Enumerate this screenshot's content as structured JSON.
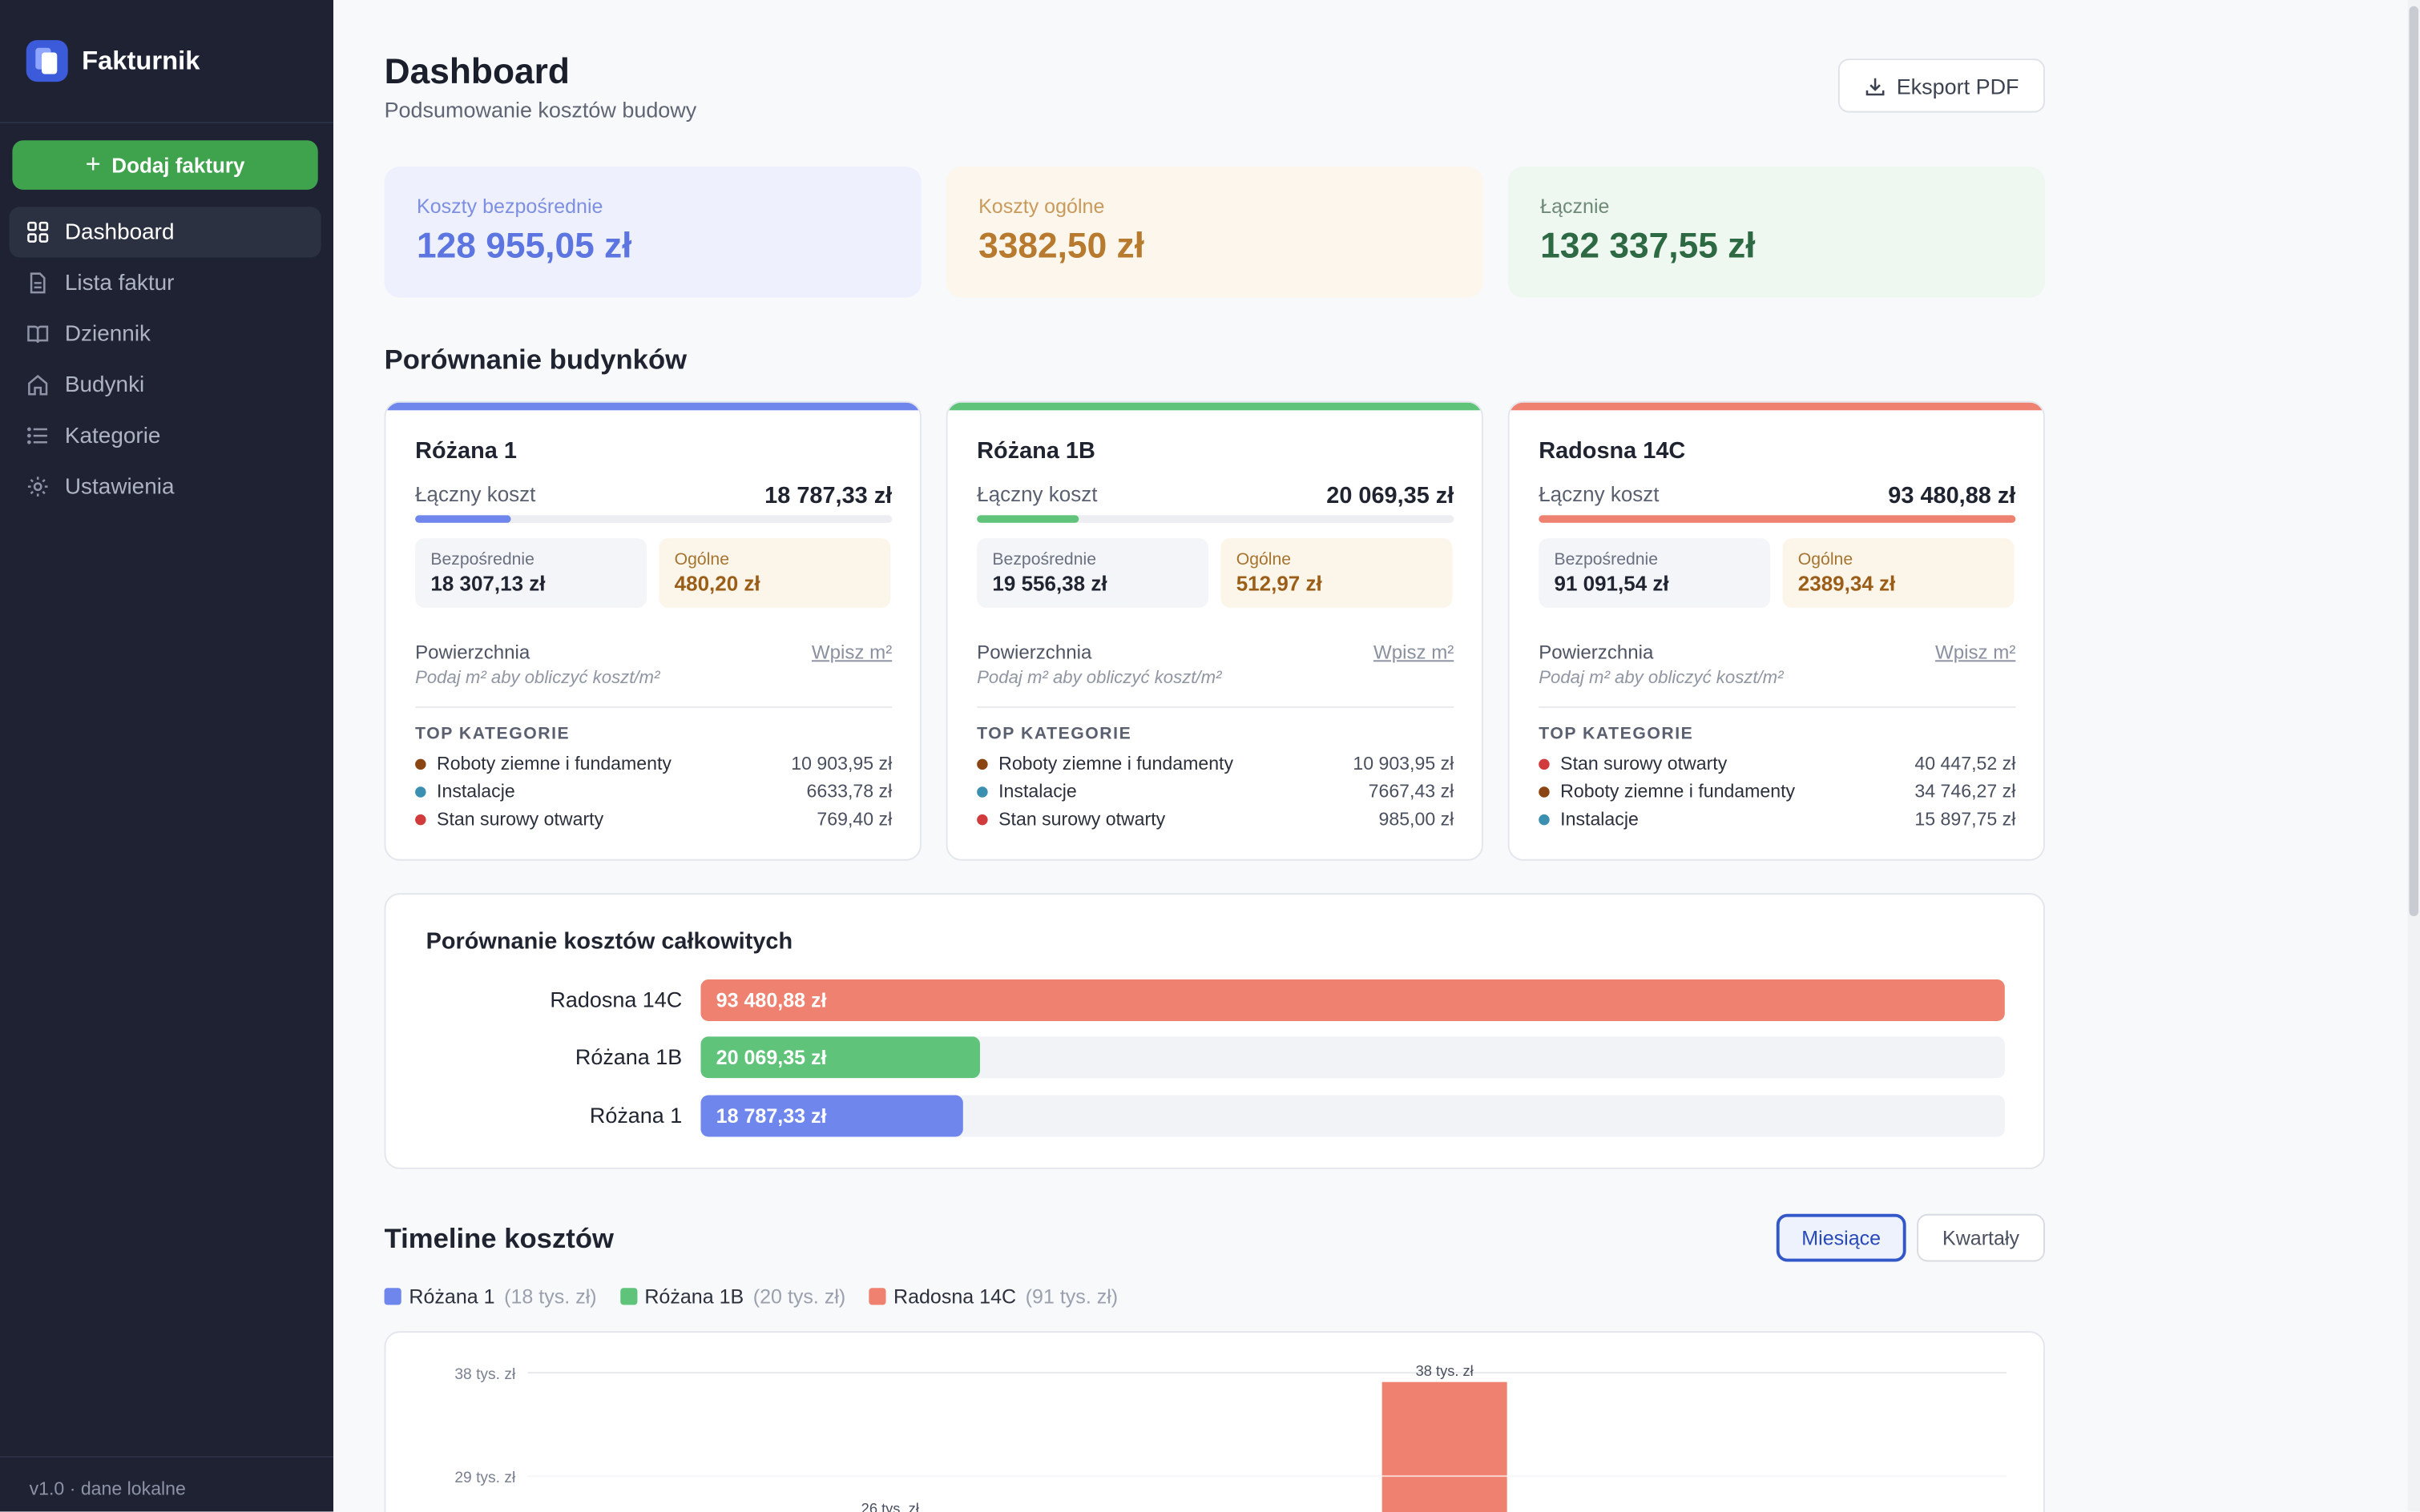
{
  "app": {
    "name": "Fakturnik",
    "version": "v1.0 · dane lokalne"
  },
  "sidebar": {
    "add_button": "Dodaj faktury",
    "items": [
      {
        "label": "Dashboard",
        "icon": "grid-icon",
        "active": true
      },
      {
        "label": "Lista faktur",
        "icon": "document-icon",
        "active": false
      },
      {
        "label": "Dziennik",
        "icon": "book-icon",
        "active": false
      },
      {
        "label": "Budynki",
        "icon": "home-icon",
        "active": false
      },
      {
        "label": "Kategorie",
        "icon": "list-icon",
        "active": false
      },
      {
        "label": "Ustawienia",
        "icon": "gear-icon",
        "active": false
      }
    ]
  },
  "header": {
    "title": "Dashboard",
    "subtitle": "Podsumowanie kosztów budowy",
    "export_label": "Eksport PDF"
  },
  "summary": [
    {
      "label": "Koszty bezpośrednie",
      "value": "128 955,05 zł"
    },
    {
      "label": "Koszty ogólne",
      "value": "3382,50 zł"
    },
    {
      "label": "Łącznie",
      "value": "132 337,55 zł"
    }
  ],
  "buildings_section": {
    "title": "Porównanie budynków",
    "total_label": "Łączny koszt",
    "direct_label": "Bezpośrednie",
    "general_label": "Ogólne",
    "area_label": "Powierzchnia",
    "area_link": "Wpisz m²",
    "area_hint": "Podaj m² aby obliczyć koszt/m²",
    "top_label": "TOP KATEGORIE",
    "buildings": [
      {
        "name": "Różana 1",
        "color": "#6f86ec",
        "total": "18 787,33 zł",
        "share": 0.2,
        "direct": "18 307,13 zł",
        "general": "480,20 zł",
        "categories": [
          {
            "name": "Roboty ziemne i fundamenty",
            "value": "10 903,95 zł",
            "color": "#8b4513"
          },
          {
            "name": "Instalacje",
            "value": "6633,78 zł",
            "color": "#3b8fb0"
          },
          {
            "name": "Stan surowy otwarty",
            "value": "769,40 zł",
            "color": "#d13b3b"
          }
        ]
      },
      {
        "name": "Różana 1B",
        "color": "#5fc47a",
        "total": "20 069,35 zł",
        "share": 0.215,
        "direct": "19 556,38 zł",
        "general": "512,97 zł",
        "categories": [
          {
            "name": "Roboty ziemne i fundamenty",
            "value": "10 903,95 zł",
            "color": "#8b4513"
          },
          {
            "name": "Instalacje",
            "value": "7667,43 zł",
            "color": "#3b8fb0"
          },
          {
            "name": "Stan surowy otwarty",
            "value": "985,00 zł",
            "color": "#d13b3b"
          }
        ]
      },
      {
        "name": "Radosna 14C",
        "color": "#ef8170",
        "total": "93 480,88 zł",
        "share": 1.0,
        "direct": "91 091,54 zł",
        "general": "2389,34 zł",
        "categories": [
          {
            "name": "Stan surowy otwarty",
            "value": "40 447,52 zł",
            "color": "#d13b3b"
          },
          {
            "name": "Roboty ziemne i fundamenty",
            "value": "34 746,27 zł",
            "color": "#8b4513"
          },
          {
            "name": "Instalacje",
            "value": "15 897,75 zł",
            "color": "#3b8fb0"
          }
        ]
      }
    ]
  },
  "comparison": {
    "title": "Porównanie kosztów całkowitych",
    "rows": [
      {
        "label": "Radosna 14C",
        "value_text": "93 480,88 zł",
        "value": 93480.88,
        "color": "#ef8170"
      },
      {
        "label": "Różana 1B",
        "value_text": "20 069,35 zł",
        "value": 20069.35,
        "color": "#5fc47a"
      },
      {
        "label": "Różana 1",
        "value_text": "18 787,33 zł",
        "value": 18787.33,
        "color": "#6f86ec"
      }
    ]
  },
  "timeline": {
    "title": "Timeline kosztów",
    "toggle": {
      "months": "Miesiące",
      "quarters": "Kwartały"
    },
    "legend": [
      {
        "name": "Różana 1",
        "extra": "(18 tys. zł)",
        "color": "#6f86ec"
      },
      {
        "name": "Różana 1B",
        "extra": "(20 tys. zł)",
        "color": "#5fc47a"
      },
      {
        "name": "Radosna 14C",
        "extra": "(91 tys. zł)",
        "color": "#ef8170"
      }
    ]
  },
  "chart_data": {
    "type": "bar",
    "ytick_labels": [
      "38 tys. zł",
      "29 tys. zł"
    ],
    "ylim": [
      20,
      38
    ],
    "bars": [
      {
        "series": "Radosna 14C",
        "value": 26,
        "label": "26 tys. zł",
        "color": "#ef8170",
        "slot": 0.245
      },
      {
        "series": "Radosna 14C",
        "value": 38,
        "label": "38 tys. zł",
        "color": "#ef8170",
        "slot": 0.62
      }
    ]
  }
}
